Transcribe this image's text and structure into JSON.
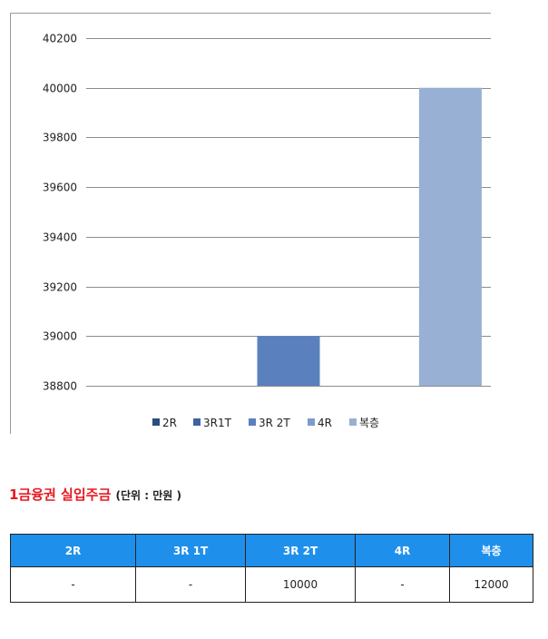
{
  "chart_data": {
    "type": "bar",
    "categories": [
      "2R",
      "3R1T",
      "3R 2T",
      "4R",
      "복층"
    ],
    "values": [
      null,
      null,
      39000,
      null,
      40000
    ],
    "colors": [
      "#2c4c7c",
      "#3f63a0",
      "#5a80bd",
      "#7d9bcd",
      "#98b0d4"
    ],
    "ylim": [
      38800,
      40200
    ],
    "yticks": [
      38800,
      39000,
      39200,
      39400,
      39600,
      39800,
      40000,
      40200
    ],
    "grid": true,
    "legend_position": "bottom",
    "legend": [
      "2R",
      "3R1T",
      "3R 2T",
      "4R",
      "복층"
    ],
    "title": "",
    "xlabel": "",
    "ylabel": ""
  },
  "section": {
    "title": "1금융권 실입주금",
    "unit": "(단위 : 만원 )"
  },
  "table": {
    "headers": [
      "2R",
      "3R 1T",
      "3R 2T",
      "4R",
      "복층"
    ],
    "row": [
      "-",
      "-",
      "10000",
      "-",
      "12000"
    ]
  }
}
